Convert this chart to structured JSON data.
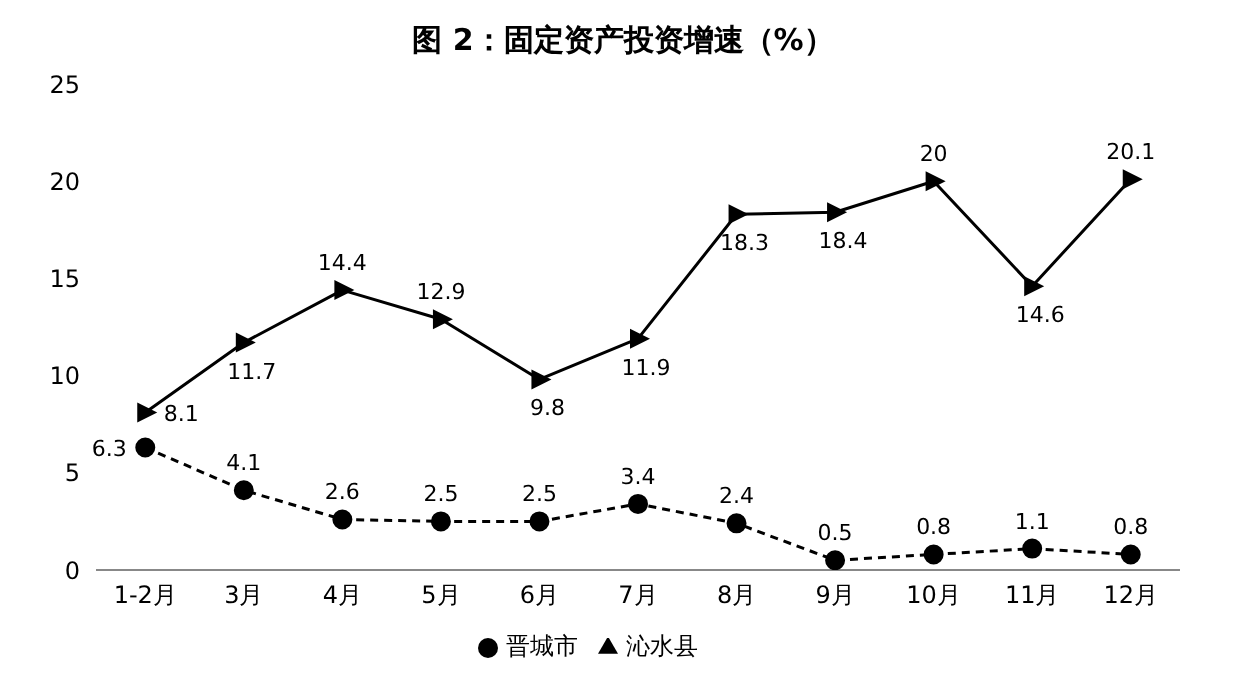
{
  "chart_data": {
    "type": "line",
    "title": "图 2：固定资产投资增速（%）",
    "categories": [
      "1-2月",
      "3月",
      "4月",
      "5月",
      "6月",
      "7月",
      "8月",
      "9月",
      "10月",
      "11月",
      "12月"
    ],
    "series": [
      {
        "name": "晋城市",
        "color": "#000000",
        "marker": "circle",
        "line_style": "dashed",
        "values": [
          6.3,
          4.1,
          2.6,
          2.5,
          2.5,
          3.4,
          2.4,
          0.5,
          0.8,
          1.1,
          0.8
        ]
      },
      {
        "name": "沁水县",
        "color": "#000000",
        "marker": "triangle",
        "line_style": "solid",
        "values": [
          8.1,
          11.7,
          14.4,
          12.9,
          9.8,
          11.9,
          18.3,
          18.4,
          20,
          14.6,
          20.1
        ]
      }
    ],
    "ylim": [
      0,
      25
    ],
    "yticks": [
      0,
      5,
      10,
      15,
      20,
      25
    ],
    "grid": false,
    "legend": "bottom",
    "data_labels": true
  }
}
